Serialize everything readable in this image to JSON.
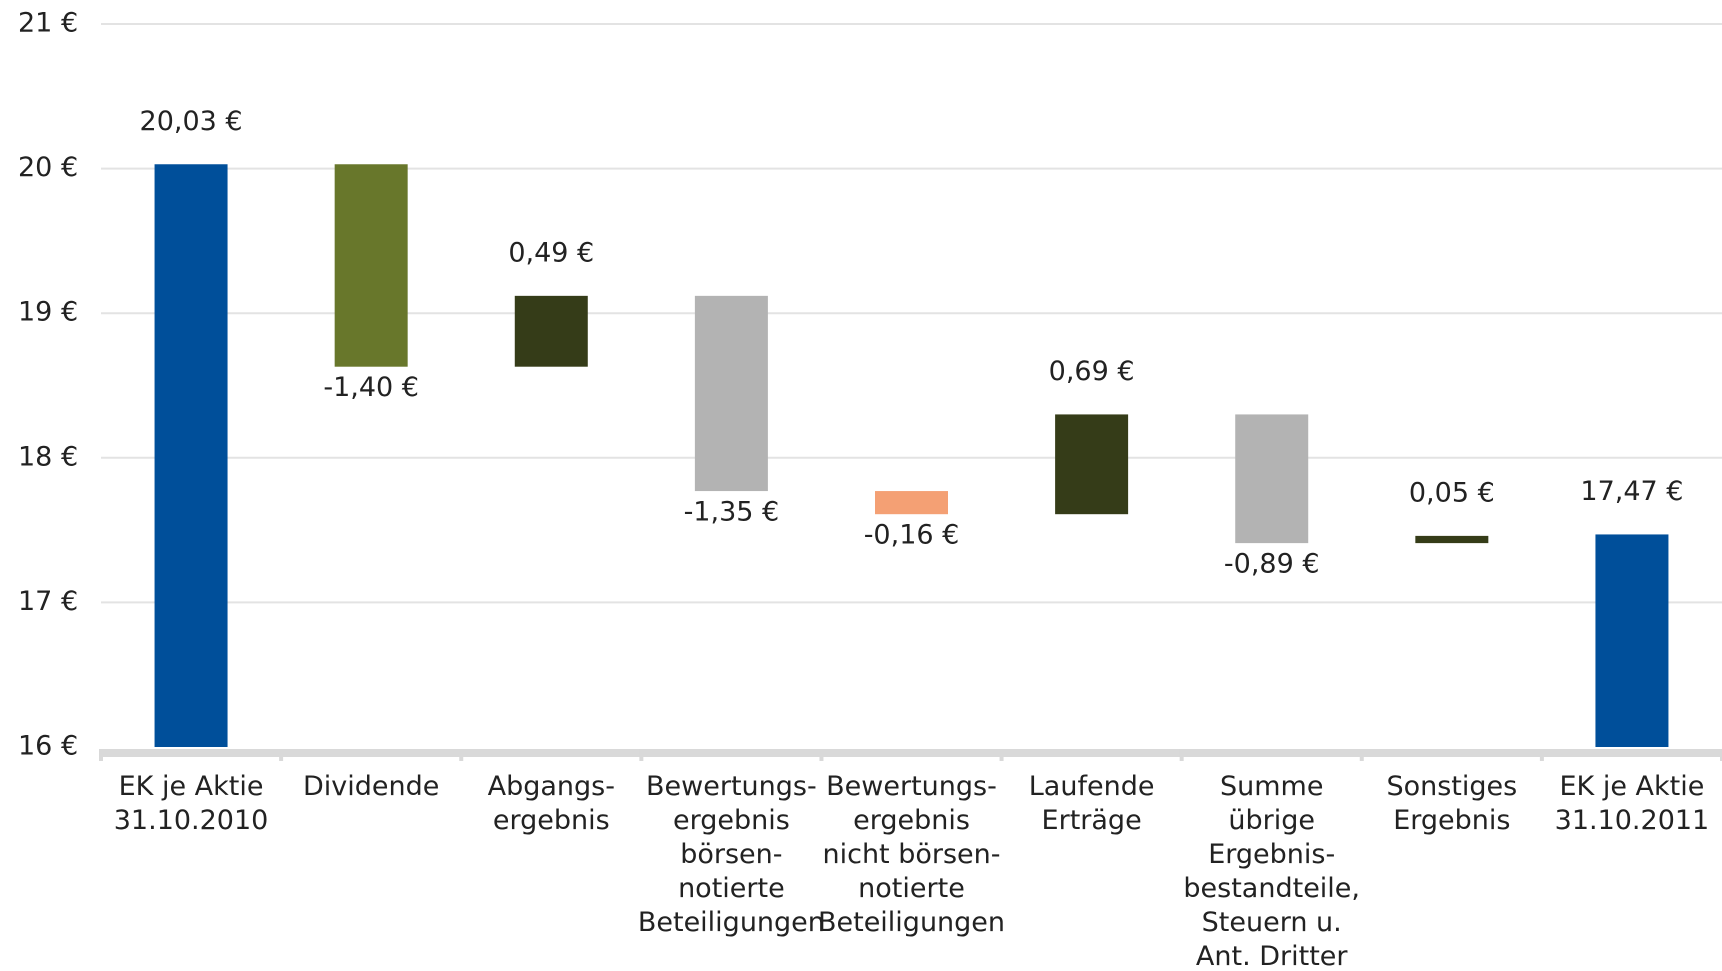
{
  "chart_data": {
    "type": "waterfall",
    "categories": [
      [
        "EK je Aktie",
        "31.10.2010"
      ],
      [
        "Dividende"
      ],
      [
        "Abgangs-",
        "ergebnis"
      ],
      [
        "Bewertungs-",
        "ergebnis",
        "börsen-",
        "notierte",
        "Beteiligungen"
      ],
      [
        "Bewertungs-",
        "ergebnis",
        "nicht börsen-",
        "notierte",
        "Beteiligungen"
      ],
      [
        "Laufende",
        "Erträge"
      ],
      [
        "Summe",
        "übrige",
        "Ergebnis-",
        "bestandteile,",
        "Steuern u.",
        "Ant. Dritter"
      ],
      [
        "Sonstiges",
        "Ergebnis"
      ],
      [
        "EK je Aktie",
        "31.10.2011"
      ]
    ],
    "values": [
      20.03,
      -1.4,
      0.49,
      -1.35,
      -0.16,
      0.69,
      -0.89,
      0.05,
      17.47
    ],
    "value_labels": [
      "20,03 €",
      "-1,40 €",
      "0,49 €",
      "-1,35 €",
      "-0,16 €",
      "0,69 €",
      "-0,89 €",
      "0,05 €",
      "17,47 €"
    ],
    "measure": [
      "absolute",
      "relative",
      "relative",
      "relative",
      "relative",
      "relative",
      "relative",
      "relative",
      "absolute"
    ],
    "colors": [
      "#004f9a",
      "#68772b",
      "#353c18",
      "#b3b3b3",
      "#f4a074",
      "#353c18",
      "#b3b3b3",
      "#353c18",
      "#004f9a"
    ],
    "ylim": [
      16,
      21
    ],
    "yticks": [
      {
        "value": 16,
        "label": "16 €"
      },
      {
        "value": 17,
        "label": "17 €"
      },
      {
        "value": 18,
        "label": "18 €"
      },
      {
        "value": 19,
        "label": "19 €"
      },
      {
        "value": 20,
        "label": "20 €"
      },
      {
        "value": 21,
        "label": "21 €"
      }
    ],
    "grid": true
  }
}
